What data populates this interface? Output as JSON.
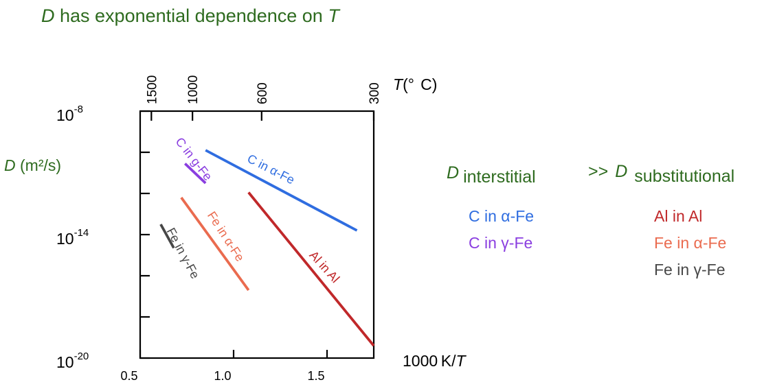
{
  "title": {
    "var": "D",
    "rest": " has exponential dependence on ",
    "var2": "T"
  },
  "ylabel": {
    "var": "D",
    "unit": " (m²/s)"
  },
  "xlabel": {
    "num": "1000 K/",
    "var": "T"
  },
  "top_axis_label": {
    "var": "T",
    "unit": "(°  C)"
  },
  "comparison": {
    "left_var": "D",
    "left_sub": "interstitial",
    "op": ">>",
    "right_var": "D",
    "right_sub": "substitutional"
  },
  "legend_interstitial": [
    "C in α-Fe",
    "C in γ-Fe"
  ],
  "legend_substitutional": [
    "Al in Al",
    "Fe in α-Fe",
    "Fe in γ-Fe"
  ],
  "colors": {
    "title": "#2e6b1f",
    "c_alpha": "#2f6de0",
    "c_gamma": "#8a3ee0",
    "al": "#c0282a",
    "fe_alpha": "#ea6b4f",
    "fe_gamma": "#474747"
  },
  "chart_data": {
    "type": "line",
    "x_range": [
      0.5,
      1.75
    ],
    "y_log_range": [
      -20,
      -8
    ],
    "x_ticks": [
      {
        "v": 0.5,
        "label": "0.5"
      },
      {
        "v": 1.0,
        "label": "1.0"
      },
      {
        "v": 1.5,
        "label": "1.5"
      }
    ],
    "y_major_ticks": [
      {
        "v": -8,
        "label": "10",
        "exp": "-8"
      },
      {
        "v": -14,
        "label": "10",
        "exp": "-14"
      },
      {
        "v": -20,
        "label": "10",
        "exp": "-20"
      }
    ],
    "y_minor_ticks": [
      -10,
      -12,
      -16,
      -18
    ],
    "top_ticks": [
      {
        "x": 0.56,
        "label": "1500"
      },
      {
        "x": 0.78,
        "label": "1000"
      },
      {
        "x": 1.15,
        "label": "600"
      },
      {
        "x": 1.75,
        "label": "300"
      }
    ],
    "series": [
      {
        "name": "C in α-Fe",
        "color": "#2f6de0",
        "points": [
          [
            0.85,
            -9.9
          ],
          [
            1.66,
            -13.8
          ]
        ]
      },
      {
        "name": "C in γ-Fe",
        "color": "#8a3ee0",
        "points": [
          [
            0.74,
            -10.55
          ],
          [
            0.85,
            -11.5
          ]
        ]
      },
      {
        "name": "Al in Al",
        "color": "#c0282a",
        "points": [
          [
            1.08,
            -11.95
          ],
          [
            1.75,
            -19.4
          ]
        ]
      },
      {
        "name": "Fe in α-Fe",
        "color": "#ea6b4f",
        "points": [
          [
            0.72,
            -12.2
          ],
          [
            1.08,
            -16.7
          ]
        ]
      },
      {
        "name": "Fe in γ-Fe",
        "color": "#474747",
        "points": [
          [
            0.61,
            -13.5
          ],
          [
            0.68,
            -14.65
          ]
        ]
      }
    ],
    "line_labels": [
      {
        "text": "C in α-Fe",
        "color": "#2f6de0",
        "at": [
          1.19,
          -11.0
        ],
        "rot": 27
      },
      {
        "text": "C in g-Fe",
        "color": "#8a3ee0",
        "at": [
          0.77,
          -10.45
        ],
        "rot": 52
      },
      {
        "text": "Al in Al",
        "color": "#c0282a",
        "at": [
          1.47,
          -15.7
        ],
        "rot": 48
      },
      {
        "text": "Fe in α-Fe",
        "color": "#ea6b4f",
        "at": [
          0.94,
          -14.2
        ],
        "rot": 57
      },
      {
        "text": "Fe in γ-Fe",
        "color": "#474747",
        "at": [
          0.71,
          -15.0
        ],
        "rot": 62
      }
    ]
  }
}
